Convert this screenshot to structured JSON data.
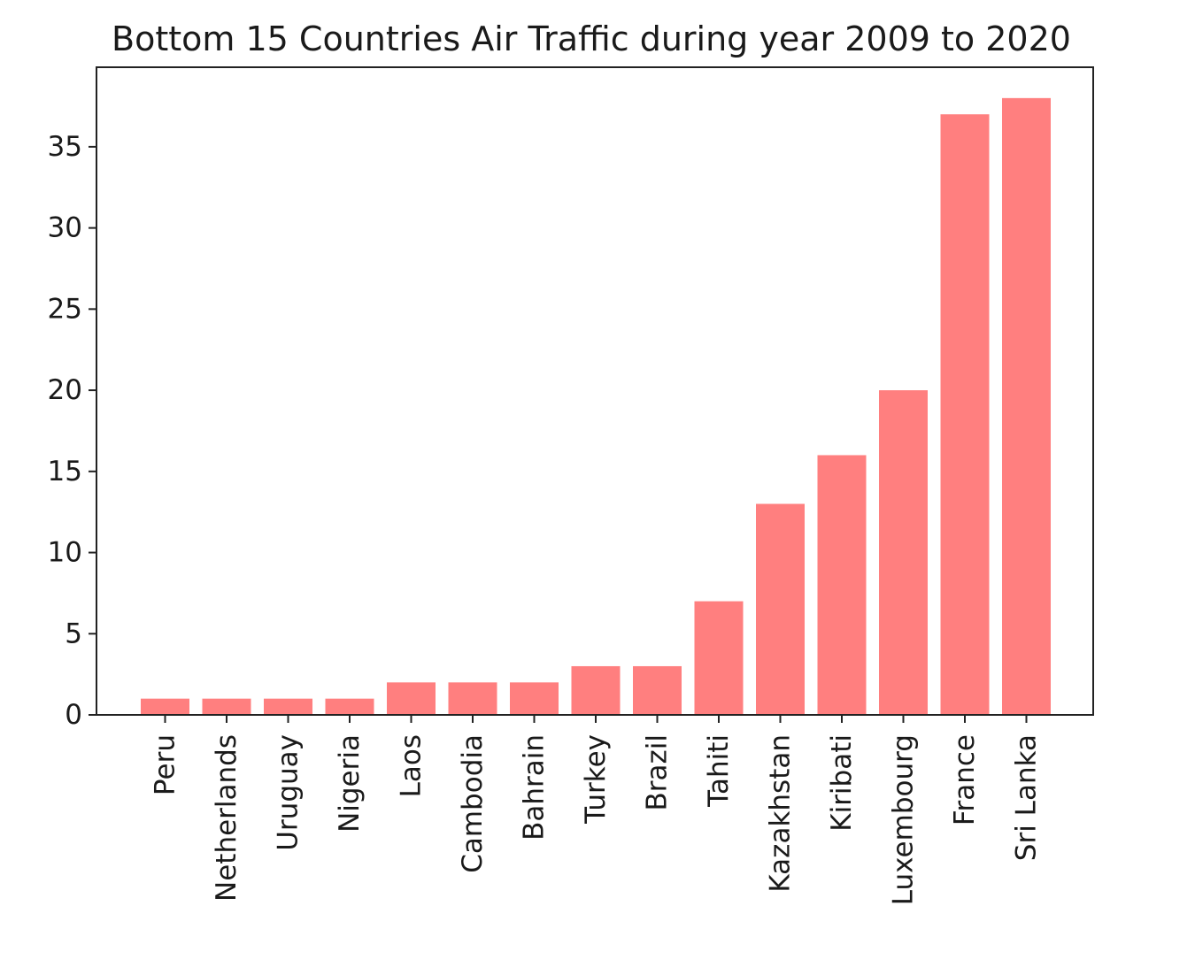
{
  "chart_data": {
    "type": "bar",
    "title": "Bottom 15 Countries Air Traffic during year 2009 to 2020",
    "xlabel": "",
    "ylabel": "",
    "categories": [
      "Peru",
      "Netherlands",
      "Uruguay",
      "Nigeria",
      "Laos",
      "Cambodia",
      "Bahrain",
      "Turkey",
      "Brazil",
      "Tahiti",
      "Kazakhstan",
      "Kiribati",
      "Luxembourg",
      "France",
      "Sri Lanka"
    ],
    "values": [
      1,
      1,
      1,
      1,
      2,
      2,
      2,
      3,
      3,
      7,
      13,
      16,
      20,
      37,
      38
    ],
    "yticks": [
      0,
      5,
      10,
      15,
      20,
      25,
      30,
      35
    ],
    "ylim": [
      0,
      39.9
    ],
    "grid": false,
    "legend": "none",
    "bar_color": "#ff7f7f",
    "axis_color": "#222222",
    "text_color": "#1a1a1a"
  }
}
